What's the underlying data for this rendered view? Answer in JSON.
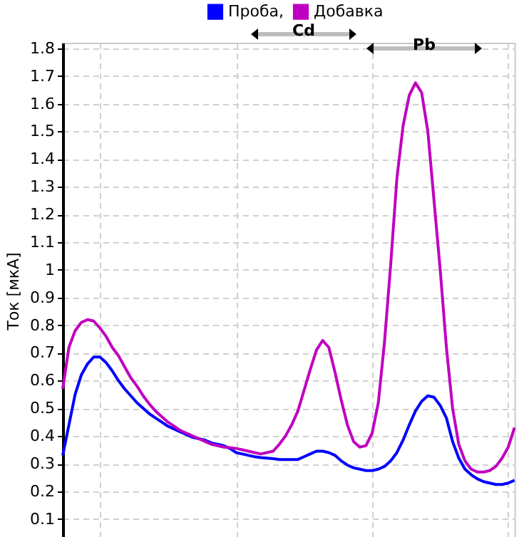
{
  "chart_data": {
    "type": "line",
    "categories": [
      null,
      null,
      null,
      null,
      null,
      null,
      null,
      null,
      null,
      null,
      null,
      null,
      null,
      null,
      null,
      null,
      null,
      null,
      null,
      null,
      null,
      null,
      null,
      null,
      null,
      null,
      null,
      null,
      null,
      null,
      null,
      null,
      null,
      null,
      null,
      null,
      null,
      null,
      null,
      null,
      null,
      null,
      null,
      null,
      null,
      null,
      null,
      null,
      null,
      null,
      null,
      null,
      null,
      null,
      null,
      null,
      null,
      null,
      null,
      null,
      null,
      null,
      null,
      null,
      null,
      null,
      null,
      null,
      null,
      null,
      null,
      null,
      null,
      null
    ],
    "series": [
      {
        "name": "Проба,",
        "color": "#0000ff",
        "values": [
          0.33,
          0.44,
          0.55,
          0.62,
          0.66,
          0.685,
          0.685,
          0.665,
          0.635,
          0.6,
          0.57,
          0.545,
          0.52,
          0.5,
          0.48,
          0.465,
          0.45,
          0.435,
          0.425,
          0.415,
          0.405,
          0.395,
          0.39,
          0.385,
          0.375,
          0.37,
          0.365,
          0.355,
          0.34,
          0.335,
          0.33,
          0.325,
          0.322,
          0.32,
          0.318,
          0.315,
          0.315,
          0.315,
          0.315,
          0.325,
          0.335,
          0.345,
          0.345,
          0.34,
          0.33,
          0.31,
          0.295,
          0.285,
          0.28,
          0.275,
          0.275,
          0.28,
          0.29,
          0.31,
          0.34,
          0.385,
          0.44,
          0.49,
          0.525,
          0.545,
          0.54,
          0.51,
          0.465,
          0.38,
          0.32,
          0.28,
          0.26,
          0.245,
          0.235,
          0.23,
          0.225,
          0.225,
          0.23,
          0.24
        ]
      },
      {
        "name": "Добавка",
        "color": "#c000c0",
        "values": [
          0.57,
          0.72,
          0.78,
          0.81,
          0.82,
          0.815,
          0.79,
          0.76,
          0.72,
          0.69,
          0.65,
          0.61,
          0.58,
          0.545,
          0.515,
          0.49,
          0.47,
          0.45,
          0.435,
          0.42,
          0.41,
          0.4,
          0.39,
          0.38,
          0.37,
          0.365,
          0.36,
          0.358,
          0.355,
          0.35,
          0.345,
          0.34,
          0.335,
          0.34,
          0.345,
          0.37,
          0.4,
          0.44,
          0.49,
          0.565,
          0.64,
          0.71,
          0.745,
          0.72,
          0.63,
          0.53,
          0.44,
          0.38,
          0.36,
          0.365,
          0.41,
          0.52,
          0.74,
          1.02,
          1.33,
          1.52,
          1.63,
          1.675,
          1.64,
          1.5,
          1.25,
          1.0,
          0.72,
          0.5,
          0.37,
          0.31,
          0.28,
          0.27,
          0.27,
          0.275,
          0.29,
          0.32,
          0.36,
          0.43
        ]
      }
    ],
    "ylabel": "Ток [мкА]",
    "ylim": [
      0.03,
      1.82
    ],
    "yticks": [
      0.1,
      0.2,
      0.3,
      0.4,
      0.5,
      0.6,
      0.7,
      0.8,
      0.9,
      1,
      1.1,
      1.2,
      1.3,
      1.4,
      1.5,
      1.6,
      1.7,
      1.8
    ],
    "grid": true,
    "legend": "top",
    "annotations": [
      "Cd",
      "Pb"
    ]
  }
}
